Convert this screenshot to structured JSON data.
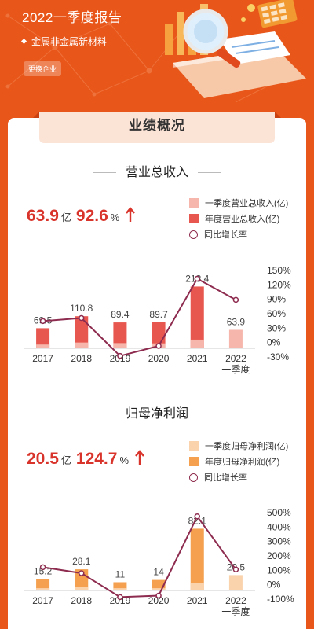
{
  "header": {
    "title": "2022一季度报告",
    "industry": "金属非金属新材料",
    "switch_label": "更换企业"
  },
  "tab_label": "业绩概况",
  "sections": [
    {
      "title": "营业总收入",
      "kpi_value": "63.9",
      "kpi_unit": "亿",
      "kpi_growth": "92.6",
      "kpi_growth_unit": "%",
      "legend": [
        "一季度营业总收入(亿)",
        "年度营业总收入(亿)",
        "同比增长率"
      ],
      "colors": {
        "quarter": "#f6b6ab",
        "annual": "#e8574f",
        "line": "#8e2c4f"
      }
    },
    {
      "title": "归母净利润",
      "kpi_value": "20.5",
      "kpi_unit": "亿",
      "kpi_growth": "124.7",
      "kpi_growth_unit": "%",
      "legend": [
        "一季度归母净利润(亿)",
        "年度归母净利润(亿)",
        "同比增长率"
      ],
      "colors": {
        "quarter": "#fad3ad",
        "annual": "#f4a04e",
        "line": "#8e2c4f"
      }
    }
  ],
  "chart_data": [
    {
      "type": "bar",
      "categories": [
        "2017",
        "2018",
        "2019",
        "2020",
        "2021",
        "2022一季度"
      ],
      "series": [
        {
          "name": "一季度营业总收入(亿)",
          "values": [
            13,
            20,
            18,
            17,
            30,
            63.9
          ]
        },
        {
          "name": "年度营业总收入(亿)",
          "values": [
            69.5,
            110.8,
            89.4,
            89.7,
            213.4,
            null
          ]
        },
        {
          "name": "同比增长率",
          "values": [
            50,
            56,
            -20,
            0,
            135,
            92.6
          ]
        }
      ],
      "data_labels": [
        "69.5",
        "110.8",
        "89.4",
        "89.7",
        "213.4",
        "63.9"
      ],
      "y_right_ticks": [
        "150%",
        "120%",
        "90%",
        "60%",
        "30%",
        "0%",
        "-30%"
      ],
      "y_right_range": [
        -30,
        150
      ]
    },
    {
      "type": "bar",
      "categories": [
        "2017",
        "2018",
        "2019",
        "2020",
        "2021",
        "2022一季度"
      ],
      "series": [
        {
          "name": "一季度归母净利润(亿)",
          "values": [
            3,
            5,
            3,
            3,
            10,
            20.5
          ]
        },
        {
          "name": "年度归母净利润(亿)",
          "values": [
            15.2,
            28.1,
            11,
            14,
            82.1,
            null
          ]
        },
        {
          "name": "同比增长率",
          "values": [
            140,
            100,
            -60,
            -50,
            480,
            124.7
          ]
        }
      ],
      "data_labels": [
        "15.2",
        "28.1",
        "11",
        "14",
        "82.1",
        "20.5"
      ],
      "y_right_ticks": [
        "500%",
        "400%",
        "300%",
        "200%",
        "100%",
        "0%",
        "-100%"
      ],
      "y_right_range": [
        -100,
        500
      ]
    }
  ]
}
